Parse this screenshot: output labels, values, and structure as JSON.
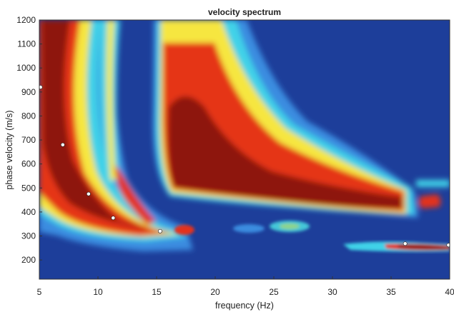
{
  "chart_data": {
    "type": "heatmap",
    "title": "velocity spectrum",
    "xlabel": "frequency (Hz)",
    "ylabel": "phase velocity (m/s)",
    "xlim": [
      5,
      40
    ],
    "ylim": [
      120,
      1200
    ],
    "x_ticks": [
      "5",
      "10",
      "15",
      "20",
      "25",
      "30",
      "35",
      "40"
    ],
    "y_ticks": [
      "200",
      "300",
      "400",
      "500",
      "600",
      "700",
      "800",
      "900",
      "1000",
      "1100",
      "1200"
    ],
    "colormap": "jet",
    "picked_points": [
      {
        "x": 5.1,
        "y": 920
      },
      {
        "x": 7.0,
        "y": 680
      },
      {
        "x": 9.2,
        "y": 475
      },
      {
        "x": 11.3,
        "y": 375
      },
      {
        "x": 15.3,
        "y": 320
      },
      {
        "x": 36.2,
        "y": 268
      },
      {
        "x": 39.9,
        "y": 262
      }
    ]
  }
}
